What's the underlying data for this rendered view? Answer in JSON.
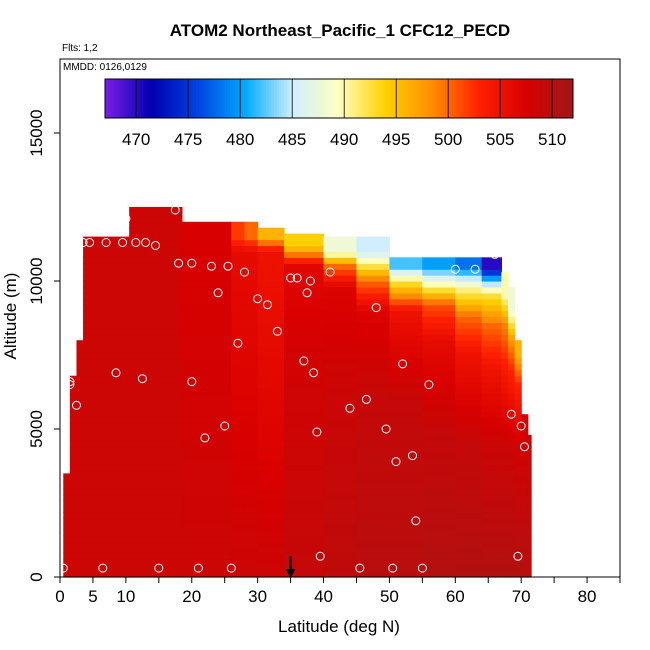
{
  "chart_data": {
    "type": "heatmap",
    "title": "ATOM2 Northeast_Pacific_1 CFC12_PECD",
    "flights_note": "Flts: 1,2",
    "date_note": "MMDD: 0126,0129",
    "xlabel": "Latitude (deg N)",
    "ylabel": "Altitude (m)",
    "xlim": [
      0,
      85
    ],
    "ylim": [
      0,
      17500
    ],
    "x_ticks": [
      0,
      5,
      10,
      20,
      30,
      40,
      50,
      60,
      70,
      80
    ],
    "x_minor_ticks": [
      15,
      25,
      35,
      45,
      55,
      65,
      75,
      85
    ],
    "y_ticks": [
      0,
      5000,
      10000,
      15000
    ],
    "colorbar": {
      "ticks": [
        470,
        475,
        480,
        485,
        490,
        495,
        500,
        505,
        510
      ],
      "range": [
        467,
        512
      ],
      "colors": [
        "#7a1fe6",
        "#0000b0",
        "#0045e0",
        "#00aaff",
        "#cfeeff",
        "#ffffc0",
        "#ffd000",
        "#ff8c00",
        "#ff2000",
        "#d80000",
        "#a01818"
      ]
    },
    "marker": {
      "x": 35,
      "label": ""
    },
    "columns": [
      {
        "x0": 0.5,
        "x1": 1.5,
        "ytop": 3500,
        "v": [
          [
            0,
            508.5
          ]
        ]
      },
      {
        "x0": 1.5,
        "x1": 2.5,
        "ytop": 6800,
        "v": [
          [
            0,
            508.5
          ]
        ]
      },
      {
        "x0": 2.5,
        "x1": 3.5,
        "ytop": 8000,
        "v": [
          [
            0,
            508.5
          ]
        ]
      },
      {
        "x0": 3.5,
        "x1": 10.5,
        "ytop": 11500,
        "v": [
          [
            0,
            508.5
          ]
        ]
      },
      {
        "x0": 10.5,
        "x1": 18.5,
        "ytop": 12500,
        "v": [
          [
            0,
            508.5
          ]
        ]
      },
      {
        "x0": 18.5,
        "x1": 26,
        "ytop": 12000,
        "v": [
          [
            0,
            508.5
          ],
          [
            11500,
            507.5
          ]
        ]
      },
      {
        "x0": 26,
        "x1": 28,
        "ytop": 12000,
        "v": [
          [
            0,
            508.5
          ],
          [
            11000,
            506
          ],
          [
            11500,
            502
          ]
        ]
      },
      {
        "x0": 28,
        "x1": 30,
        "ytop": 12000,
        "v": [
          [
            0,
            508.5
          ],
          [
            11000,
            506
          ],
          [
            11500,
            500
          ]
        ]
      },
      {
        "x0": 30,
        "x1": 34,
        "ytop": 11800,
        "v": [
          [
            0,
            508.5
          ],
          [
            11000,
            505
          ],
          [
            11500,
            496
          ]
        ]
      },
      {
        "x0": 34,
        "x1": 40,
        "ytop": 11600,
        "v": [
          [
            0,
            509
          ],
          [
            7500,
            508
          ],
          [
            10500,
            506.5
          ],
          [
            11200,
            494
          ]
        ]
      },
      {
        "x0": 40,
        "x1": 45,
        "ytop": 11500,
        "v": [
          [
            0,
            509.5
          ],
          [
            6500,
            508.5
          ],
          [
            9800,
            507
          ],
          [
            10500,
            500
          ],
          [
            11000,
            488
          ]
        ]
      },
      {
        "x0": 45,
        "x1": 50,
        "ytop": 11500,
        "v": [
          [
            0,
            510
          ],
          [
            6000,
            509
          ],
          [
            9000,
            507
          ],
          [
            10000,
            500
          ],
          [
            11000,
            485
          ]
        ]
      },
      {
        "x0": 50,
        "x1": 55,
        "ytop": 10800,
        "v": [
          [
            0,
            510
          ],
          [
            6000,
            509
          ],
          [
            9000,
            505
          ],
          [
            10000,
            492
          ],
          [
            10500,
            482
          ]
        ]
      },
      {
        "x0": 55,
        "x1": 60,
        "ytop": 10800,
        "v": [
          [
            0,
            510.5
          ],
          [
            5000,
            509
          ],
          [
            8000,
            506
          ],
          [
            9200,
            501
          ],
          [
            10000,
            488
          ],
          [
            10500,
            480
          ]
        ]
      },
      {
        "x0": 60,
        "x1": 64,
        "ytop": 10800,
        "v": [
          [
            0,
            510.5
          ],
          [
            4500,
            509
          ],
          [
            7500,
            505
          ],
          [
            8800,
            500
          ],
          [
            9800,
            490
          ],
          [
            10500,
            478
          ]
        ]
      },
      {
        "x0": 64,
        "x1": 67,
        "ytop": 10800,
        "v": [
          [
            0,
            510.5
          ],
          [
            4500,
            508.5
          ],
          [
            7000,
            505
          ],
          [
            8500,
            500
          ],
          [
            9600,
            492
          ],
          [
            10500,
            470
          ]
        ]
      },
      {
        "x0": 67,
        "x1": 68,
        "ytop": 10300,
        "v": [
          [
            0,
            510.5
          ],
          [
            4500,
            508.5
          ],
          [
            7000,
            504
          ],
          [
            8500,
            499
          ],
          [
            9500,
            490
          ]
        ]
      },
      {
        "x0": 68,
        "x1": 69,
        "ytop": 9800,
        "v": [
          [
            0,
            510.5
          ],
          [
            4500,
            508.5
          ],
          [
            7000,
            503
          ],
          [
            8000,
            498
          ],
          [
            9000,
            488
          ]
        ]
      },
      {
        "x0": 69,
        "x1": 70,
        "ytop": 8000,
        "v": [
          [
            0,
            510.5
          ],
          [
            4500,
            508
          ],
          [
            6500,
            503
          ],
          [
            7500,
            496
          ]
        ]
      },
      {
        "x0": 70,
        "x1": 71,
        "ytop": 5500,
        "v": [
          [
            0,
            510.5
          ],
          [
            4500,
            508
          ]
        ]
      },
      {
        "x0": 71,
        "x1": 71.5,
        "ytop": 4800,
        "v": [
          [
            0,
            509
          ]
        ]
      }
    ],
    "sample_points": [
      [
        0.5,
        300
      ],
      [
        1.5,
        6500
      ],
      [
        1.5,
        6600
      ],
      [
        2.5,
        5800
      ],
      [
        3.5,
        11300
      ],
      [
        4.5,
        11300
      ],
      [
        7,
        11300
      ],
      [
        8.5,
        6900
      ],
      [
        9.5,
        11300
      ],
      [
        10,
        12100
      ],
      [
        11.5,
        11300
      ],
      [
        12.5,
        6700
      ],
      [
        13,
        11300
      ],
      [
        14.5,
        11200
      ],
      [
        15,
        300
      ],
      [
        17.5,
        12400
      ],
      [
        18,
        10600
      ],
      [
        20,
        10600
      ],
      [
        20,
        6600
      ],
      [
        21,
        300
      ],
      [
        22,
        4700
      ],
      [
        23,
        10500
      ],
      [
        24,
        9600
      ],
      [
        25,
        5100
      ],
      [
        25.5,
        10500
      ],
      [
        26,
        300
      ],
      [
        27,
        7900
      ],
      [
        28,
        10300
      ],
      [
        30,
        9400
      ],
      [
        31.5,
        9200
      ],
      [
        33,
        8300
      ],
      [
        35,
        10100
      ],
      [
        36,
        10100
      ],
      [
        37,
        7300
      ],
      [
        37.5,
        9600
      ],
      [
        38,
        10000
      ],
      [
        38.5,
        6900
      ],
      [
        39,
        4900
      ],
      [
        39.5,
        700
      ],
      [
        41,
        10300
      ],
      [
        44,
        5700
      ],
      [
        45.5,
        300
      ],
      [
        46.5,
        6000
      ],
      [
        48,
        9100
      ],
      [
        49.5,
        5000
      ],
      [
        50.5,
        300
      ],
      [
        51,
        3900
      ],
      [
        52,
        7200
      ],
      [
        53.5,
        4100
      ],
      [
        54,
        1900
      ],
      [
        55,
        300
      ],
      [
        56,
        6500
      ],
      [
        60,
        10400
      ],
      [
        63,
        10400
      ],
      [
        66,
        10900
      ],
      [
        68.5,
        5500
      ],
      [
        69.5,
        700
      ],
      [
        70,
        5100
      ],
      [
        70.5,
        4400
      ],
      [
        6.5,
        300
      ]
    ]
  }
}
